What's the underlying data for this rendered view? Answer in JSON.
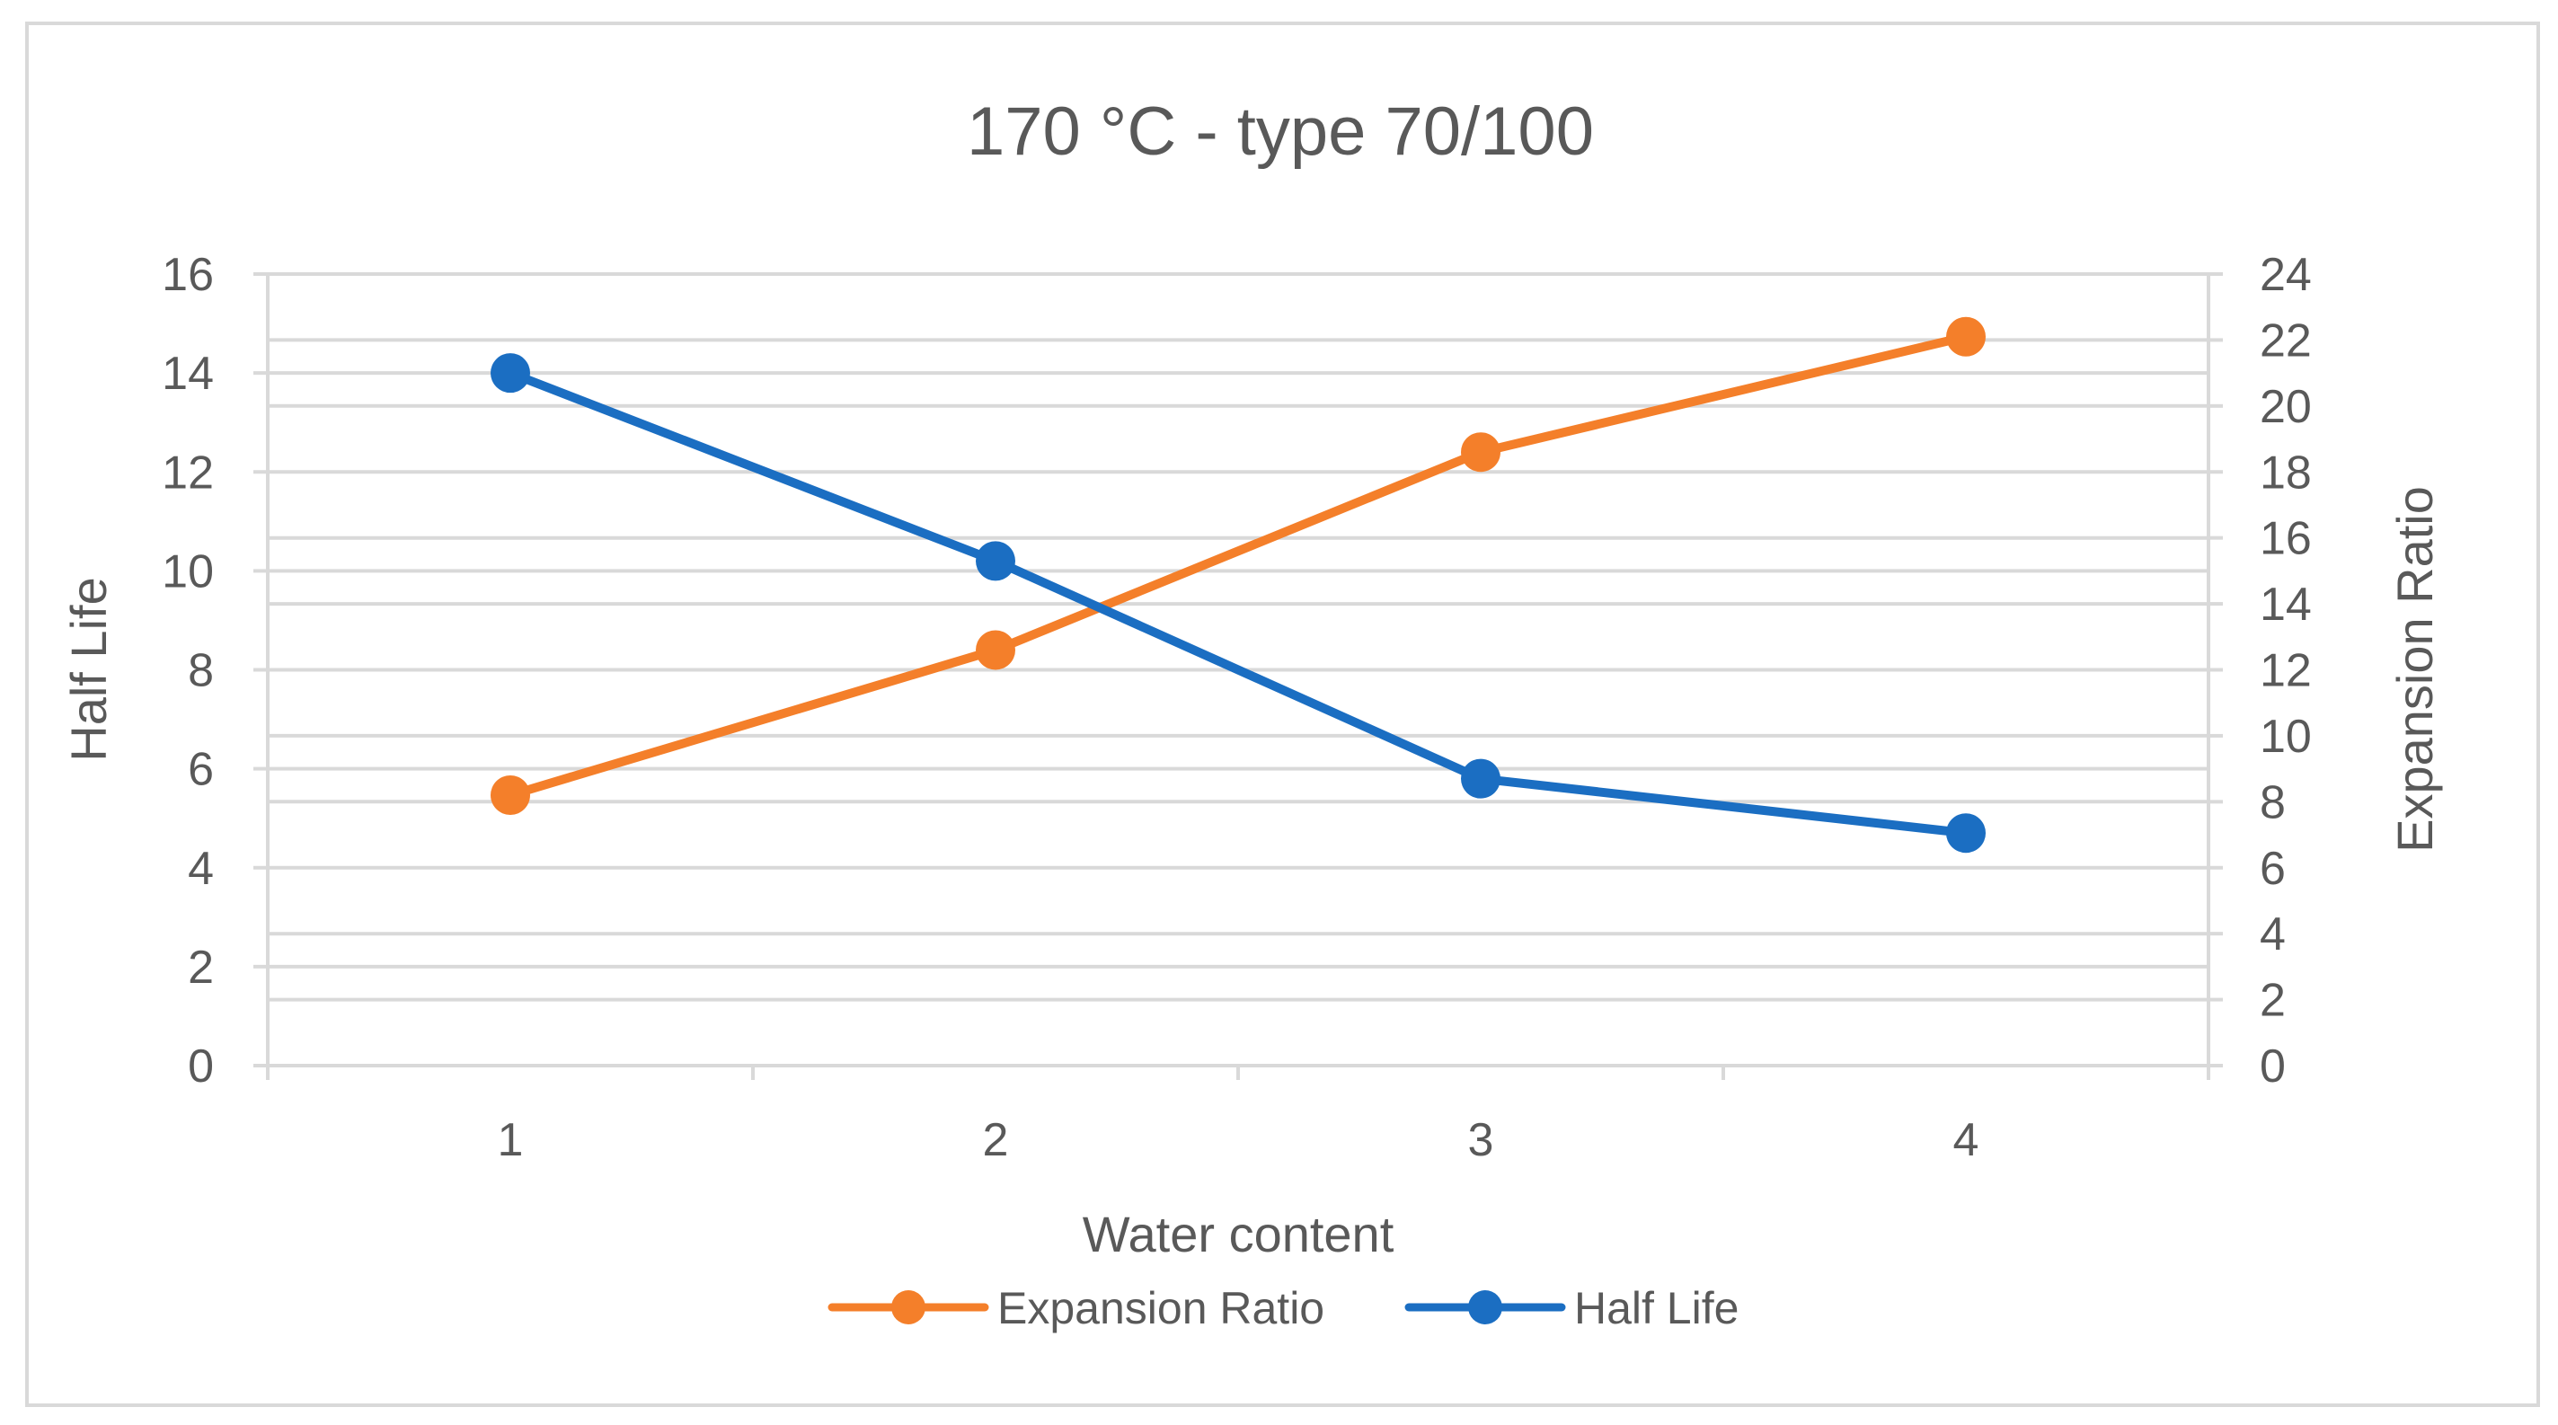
{
  "chart_data": {
    "type": "line",
    "title": "170 °C - type 70/100",
    "xlabel": "Water content",
    "ylabel_left": "Half Life",
    "ylabel_right": "Expansion Ratio",
    "categories": [
      "1",
      "2",
      "3",
      "4"
    ],
    "y_left_range": [
      0,
      16
    ],
    "y_left_ticks": [
      "0",
      "2",
      "4",
      "6",
      "8",
      "10",
      "12",
      "14",
      "16"
    ],
    "y_right_range": [
      0,
      24
    ],
    "y_right_ticks": [
      "0",
      "2",
      "4",
      "6",
      "8",
      "10",
      "12",
      "14",
      "16",
      "18",
      "20",
      "22",
      "24"
    ],
    "grid": true,
    "legend_position": "bottom",
    "series": [
      {
        "name": "Expansion Ratio",
        "axis": "right",
        "color": "#F47F2A",
        "values": [
          8.2,
          12.6,
          18.6,
          22.1
        ]
      },
      {
        "name": "Half Life",
        "axis": "left",
        "color": "#1B6EC2",
        "values": [
          14.0,
          10.2,
          5.8,
          4.7
        ]
      }
    ]
  },
  "colors": {
    "text": "#595959",
    "grid": "#D9D9D9",
    "frame": "#D9D9D9"
  }
}
